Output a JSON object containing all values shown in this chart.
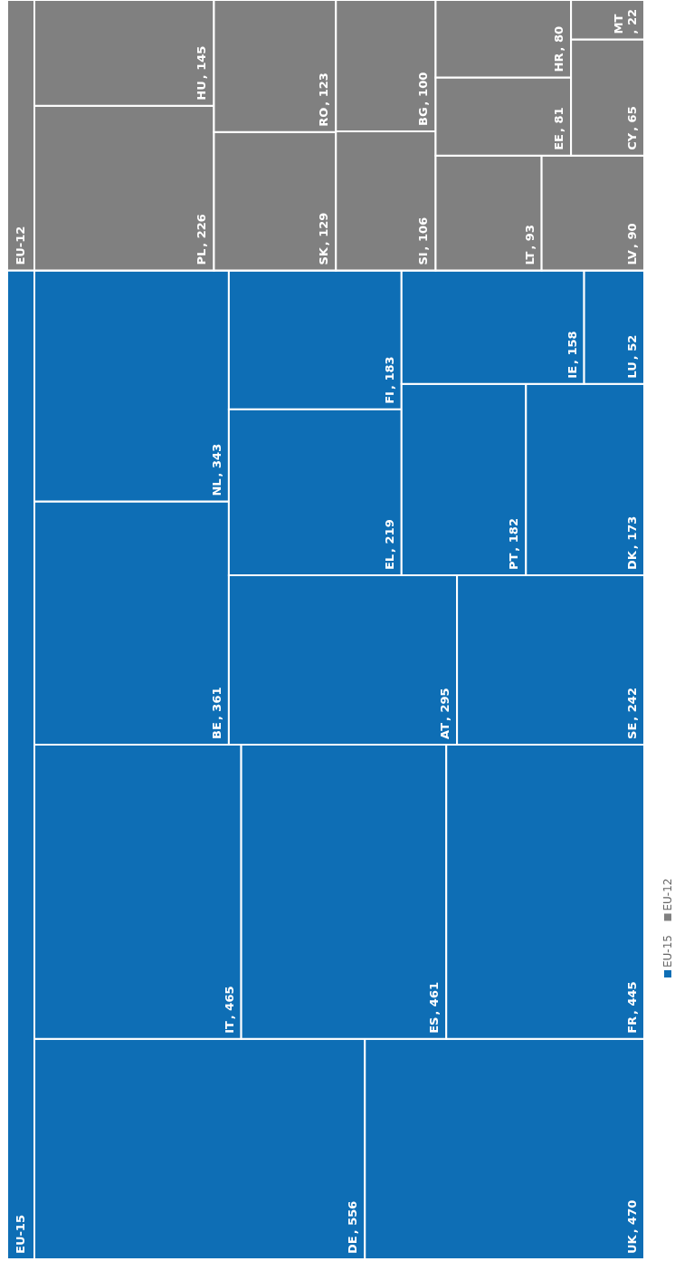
{
  "chart_data": {
    "type": "other",
    "legend": "bottom",
    "categories": [
      "DE",
      "UK",
      "IT",
      "ES",
      "FR",
      "BE",
      "NL",
      "AT",
      "SE",
      "EL",
      "FI",
      "PT",
      "DK",
      "IE",
      "LU",
      "PL",
      "HU",
      "SK",
      "RO",
      "SI",
      "BG",
      "LT",
      "LV",
      "EE",
      "HR",
      "CY",
      "MT"
    ],
    "series": [
      {
        "name": "EU-15",
        "color": "#0e6eb5",
        "values": [
          556,
          470,
          465,
          461,
          445,
          361,
          343,
          295,
          242,
          219,
          183,
          182,
          173,
          158,
          52,
          null,
          null,
          null,
          null,
          null,
          null,
          null,
          null,
          null,
          null,
          null,
          null
        ],
        "value_labels": [
          ", 556",
          ", 470",
          ", 465",
          ", 461",
          ", 445",
          ", 361",
          ", 343",
          ", 295",
          ", 242",
          ", 219",
          ", 183",
          ", 182",
          ", 173",
          ", 158",
          ", 52",
          null,
          null,
          null,
          null,
          null,
          null,
          null,
          null,
          null,
          null,
          null,
          null
        ]
      },
      {
        "name": "EU-12",
        "color": "#808080",
        "values": [
          null,
          null,
          null,
          null,
          null,
          null,
          null,
          null,
          null,
          null,
          null,
          null,
          null,
          null,
          null,
          226,
          145,
          129,
          123,
          106,
          100,
          93,
          90,
          81,
          80,
          65,
          22
        ],
        "value_labels": [
          null,
          null,
          null,
          null,
          null,
          null,
          null,
          null,
          null,
          null,
          null,
          null,
          null,
          null,
          null,
          ", 226",
          ", 145",
          ", 129",
          ", 123",
          ", 106",
          ", 100",
          ", 93",
          ", 90",
          ", 81",
          ", 80",
          ", 65",
          ", 22"
        ]
      }
    ]
  }
}
